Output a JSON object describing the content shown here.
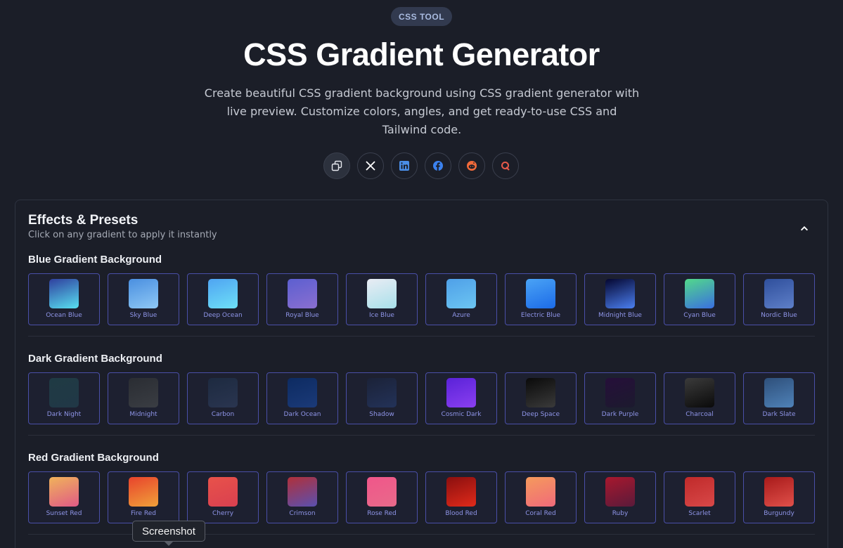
{
  "header": {
    "badge": "CSS TOOL",
    "title": "CSS Gradient Generator",
    "subtitle": "Create beautiful CSS gradient background using CSS gradient generator with live preview. Customize colors, angles, and get ready-to-use CSS and Tailwind code."
  },
  "share": [
    {
      "icon": "copy-icon"
    },
    {
      "icon": "x-icon"
    },
    {
      "icon": "linkedin-icon"
    },
    {
      "icon": "facebook-icon"
    },
    {
      "icon": "reddit-icon"
    },
    {
      "icon": "quora-icon"
    }
  ],
  "panel": {
    "title": "Effects & Presets",
    "subtitle": "Click on any gradient to apply it instantly",
    "sections": [
      {
        "title": "Blue Gradient Background",
        "presets": [
          {
            "label": "Ocean Blue",
            "colors": [
              "#2f3f9e",
              "#58e0f0"
            ]
          },
          {
            "label": "Sky Blue",
            "colors": [
              "#4a8fe0",
              "#8fc8f5"
            ]
          },
          {
            "label": "Deep Ocean",
            "colors": [
              "#4fa4f2",
              "#6ee0f7"
            ]
          },
          {
            "label": "Royal Blue",
            "colors": [
              "#5c5fd0",
              "#8a6fd0"
            ]
          },
          {
            "label": "Ice Blue",
            "colors": [
              "#e9ecf4",
              "#a8e0ea"
            ]
          },
          {
            "label": "Azure",
            "colors": [
              "#4fa0e8",
              "#6cc5f2"
            ]
          },
          {
            "label": "Electric Blue",
            "colors": [
              "#4aa3f5",
              "#1c6be8"
            ]
          },
          {
            "label": "Midnight Blue",
            "colors": [
              "#040630",
              "#4b7ff0"
            ]
          },
          {
            "label": "Cyan Blue",
            "colors": [
              "#52d98a",
              "#3a6fe0"
            ]
          },
          {
            "label": "Nordic Blue",
            "colors": [
              "#2f4f9c",
              "#5e7fc8"
            ]
          }
        ]
      },
      {
        "title": "Dark Gradient Background",
        "presets": [
          {
            "label": "Dark Night",
            "colors": [
              "#1f3a44",
              "#213846"
            ]
          },
          {
            "label": "Midnight",
            "colors": [
              "#2a2d33",
              "#3a3d43"
            ]
          },
          {
            "label": "Carbon",
            "colors": [
              "#1d2a40",
              "#2a3550"
            ]
          },
          {
            "label": "Dark Ocean",
            "colors": [
              "#0d2b62",
              "#1b3a78"
            ]
          },
          {
            "label": "Shadow",
            "colors": [
              "#1b2238",
              "#233258"
            ]
          },
          {
            "label": "Cosmic Dark",
            "colors": [
              "#5a22d8",
              "#8a3ff0"
            ]
          },
          {
            "label": "Deep Space",
            "colors": [
              "#0a0a0a",
              "#3a3a3a"
            ]
          },
          {
            "label": "Dark Purple",
            "colors": [
              "#260f3a",
              "#1c1a2e"
            ]
          },
          {
            "label": "Charcoal",
            "colors": [
              "#3b3b3b",
              "#0a0a0a"
            ]
          },
          {
            "label": "Dark Slate",
            "colors": [
              "#2e4f7a",
              "#4f82b8"
            ]
          }
        ]
      },
      {
        "title": "Red Gradient Background",
        "presets": [
          {
            "label": "Sunset Red",
            "colors": [
              "#f0b35a",
              "#e05a86"
            ]
          },
          {
            "label": "Fire Red",
            "colors": [
              "#e8432c",
              "#f0a13a"
            ]
          },
          {
            "label": "Cherry",
            "colors": [
              "#e8524a",
              "#d94050"
            ]
          },
          {
            "label": "Crimson",
            "colors": [
              "#b0303a",
              "#5a50b0"
            ]
          },
          {
            "label": "Rose Red",
            "colors": [
              "#f0568a",
              "#e86a8a"
            ]
          },
          {
            "label": "Blood Red",
            "colors": [
              "#8a0f0f",
              "#e02a1a"
            ]
          },
          {
            "label": "Coral Red",
            "colors": [
              "#f59a5c",
              "#f06a7a"
            ]
          },
          {
            "label": "Ruby",
            "colors": [
              "#a8182e",
              "#5a1a3a"
            ]
          },
          {
            "label": "Scarlet",
            "colors": [
              "#c02a2a",
              "#d84848"
            ]
          },
          {
            "label": "Burgundy",
            "colors": [
              "#a81a1a",
              "#e0504a"
            ]
          }
        ]
      }
    ]
  },
  "tooltip": "Screenshot"
}
